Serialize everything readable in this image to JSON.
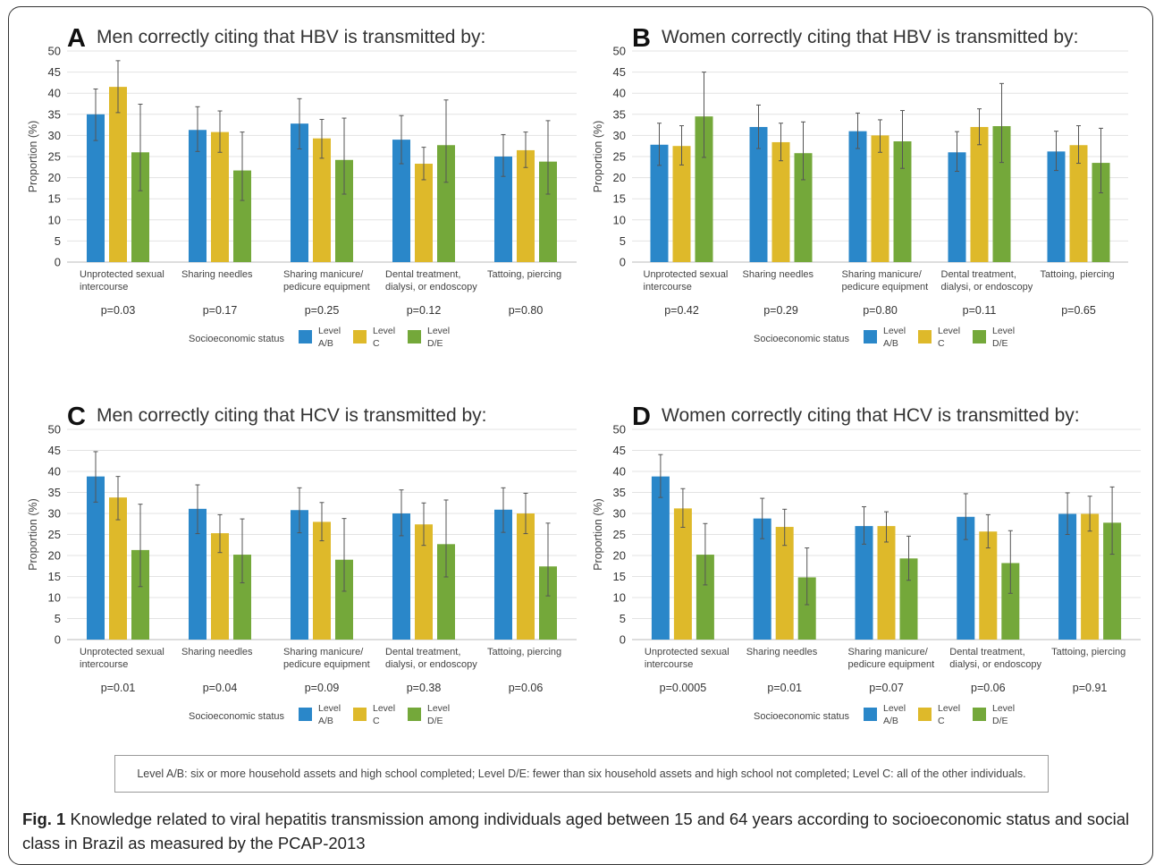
{
  "socioeconomic_label": "Socioeconomic status",
  "legend": [
    {
      "line1": "Level",
      "line2": "A/B",
      "color": "#2a87c9"
    },
    {
      "line1": "Level",
      "line2": "C",
      "color": "#deb92a"
    },
    {
      "line1": "Level",
      "line2": "D/E",
      "color": "#74a83a"
    }
  ],
  "footnote": "Level A/B: six or more household assets and high school completed; Level D/E: fewer than six household assets and high school not completed; Level C: all of the other individuals.",
  "caption": {
    "label": "Fig. 1",
    "text": " Knowledge related to viral hepatitis transmission among individuals aged between 15 and 64 years according to socioeconomic status and social class in Brazil as measured by the PCAP-2013"
  },
  "chart_data": [
    {
      "type": "bar",
      "panel": "A",
      "title": "Men correctly citing that HBV is transmitted by:",
      "ylabel": "Proportion (%)",
      "ylim": [
        0,
        50
      ],
      "yticks": [
        0,
        5,
        10,
        15,
        20,
        25,
        30,
        35,
        40,
        45,
        50
      ],
      "categories": [
        [
          "Unprotected sexual",
          "intercourse"
        ],
        [
          "Sharing needles"
        ],
        [
          "Sharing manicure/",
          "pedicure equipment"
        ],
        [
          "Dental treatment,",
          "dialysi, or endoscopy"
        ],
        [
          "Tattoing, piercing"
        ]
      ],
      "pvalues": [
        "p=0.03",
        "p=0.17",
        "p=0.25",
        "p=0.12",
        "p=0.80"
      ],
      "series": [
        {
          "values": [
            35.0,
            31.3,
            32.8,
            29.0,
            25.0
          ],
          "err_high": [
            41.0,
            36.8,
            38.7,
            34.7,
            30.2
          ],
          "err_low": [
            28.8,
            26.2,
            26.8,
            23.3,
            20.3
          ]
        },
        {
          "values": [
            41.5,
            30.8,
            29.3,
            23.3,
            26.5
          ],
          "err_high": [
            47.7,
            35.8,
            33.8,
            27.2,
            30.8
          ],
          "err_low": [
            35.4,
            26.0,
            24.6,
            19.5,
            22.4
          ]
        },
        {
          "values": [
            26.0,
            21.7,
            24.2,
            27.7,
            23.8
          ],
          "err_high": [
            37.4,
            30.8,
            34.1,
            38.4,
            33.5
          ],
          "err_low": [
            16.9,
            14.6,
            16.1,
            18.9,
            16.1
          ]
        }
      ]
    },
    {
      "type": "bar",
      "panel": "B",
      "title": "Women correctly citing that HBV is transmitted by:",
      "ylabel": "Proportion (%)",
      "ylim": [
        0,
        50
      ],
      "yticks": [
        0,
        5,
        10,
        15,
        20,
        25,
        30,
        35,
        40,
        45,
        50
      ],
      "categories": [
        [
          "Unprotected sexual",
          "intercourse"
        ],
        [
          "Sharing needles"
        ],
        [
          "Sharing manicure/",
          "pedicure equipment"
        ],
        [
          "Dental treatment,",
          "dialysi, or endoscopy"
        ],
        [
          "Tattoing, piercing"
        ]
      ],
      "pvalues": [
        "p=0.42",
        "p=0.29",
        "p=0.80",
        "p=0.11",
        "p=0.65"
      ],
      "series": [
        {
          "values": [
            27.8,
            32.0,
            31.0,
            26.0,
            26.2
          ],
          "err_high": [
            32.9,
            37.2,
            35.3,
            30.9,
            31.0
          ],
          "err_low": [
            22.9,
            26.9,
            26.9,
            21.5,
            21.7
          ]
        },
        {
          "values": [
            27.5,
            28.4,
            30.0,
            32.0,
            27.7
          ],
          "err_high": [
            32.3,
            32.9,
            33.7,
            36.3,
            32.3
          ],
          "err_low": [
            23.0,
            24.0,
            26.0,
            27.8,
            23.4
          ]
        },
        {
          "values": [
            34.5,
            25.8,
            28.6,
            32.2,
            23.5
          ],
          "err_high": [
            45.0,
            33.2,
            35.9,
            42.3,
            31.7
          ],
          "err_low": [
            24.8,
            19.5,
            22.2,
            23.6,
            16.4
          ]
        }
      ]
    },
    {
      "type": "bar",
      "panel": "C",
      "title": "Men correctly citing that HCV is transmitted by:",
      "ylabel": "Proportion (%)",
      "ylim": [
        0,
        50
      ],
      "yticks": [
        0,
        5,
        10,
        15,
        20,
        25,
        30,
        35,
        40,
        45,
        50
      ],
      "categories": [
        [
          "Unprotected sexual",
          "intercourse"
        ],
        [
          "Sharing needles"
        ],
        [
          "Sharing manicure/",
          "pedicure equipment"
        ],
        [
          "Dental treatment,",
          "dialysi, or endoscopy"
        ],
        [
          "Tattoing, piercing"
        ]
      ],
      "pvalues": [
        "p=0.01",
        "p=0.04",
        "p=0.09",
        "p=0.38",
        "p=0.06"
      ],
      "series": [
        {
          "values": [
            38.8,
            31.1,
            30.8,
            30.0,
            30.9
          ],
          "err_high": [
            44.7,
            36.8,
            36.1,
            35.6,
            36.1
          ],
          "err_low": [
            32.7,
            25.2,
            25.4,
            24.7,
            25.5
          ]
        },
        {
          "values": [
            33.8,
            25.3,
            28.0,
            27.4,
            30.0
          ],
          "err_high": [
            38.8,
            29.7,
            32.6,
            32.5,
            34.8
          ],
          "err_low": [
            28.5,
            20.7,
            23.5,
            22.4,
            25.2
          ]
        },
        {
          "values": [
            21.3,
            20.2,
            19.0,
            22.7,
            17.4
          ],
          "err_high": [
            32.2,
            28.7,
            28.8,
            33.2,
            27.7
          ],
          "err_low": [
            12.6,
            13.5,
            11.5,
            14.9,
            10.4
          ]
        }
      ]
    },
    {
      "type": "bar",
      "panel": "D",
      "title": "Women correctly citing that HCV is transmitted by:",
      "ylabel": "Proportion (%)",
      "ylim": [
        0,
        50
      ],
      "yticks": [
        0,
        5,
        10,
        15,
        20,
        25,
        30,
        35,
        40,
        45,
        50
      ],
      "categories": [
        [
          "Unprotected sexual",
          "intercourse"
        ],
        [
          "Sharing needles"
        ],
        [
          "Sharing manicure/",
          "pedicure equipment"
        ],
        [
          "Dental treatment,",
          "dialysi, or endoscopy"
        ],
        [
          "Tattoing, piercing"
        ]
      ],
      "pvalues": [
        "p=0.0005",
        "p=0.01",
        "p=0.07",
        "p=0.06",
        "p=0.91"
      ],
      "series": [
        {
          "values": [
            38.8,
            28.8,
            27.0,
            29.2,
            29.9
          ],
          "err_high": [
            44.0,
            33.6,
            31.6,
            34.7,
            34.9
          ],
          "err_low": [
            33.8,
            24.0,
            22.7,
            23.8,
            25.0
          ]
        },
        {
          "values": [
            31.2,
            26.8,
            27.0,
            25.7,
            29.9
          ],
          "err_high": [
            35.9,
            31.0,
            30.4,
            29.7,
            34.1
          ],
          "err_low": [
            26.7,
            22.4,
            23.2,
            21.8,
            25.8
          ]
        },
        {
          "values": [
            20.2,
            14.8,
            19.3,
            18.2,
            27.8
          ],
          "err_high": [
            27.6,
            21.8,
            24.6,
            25.9,
            36.3
          ],
          "err_low": [
            13.0,
            8.3,
            14.1,
            11.0,
            20.3
          ]
        }
      ]
    }
  ]
}
